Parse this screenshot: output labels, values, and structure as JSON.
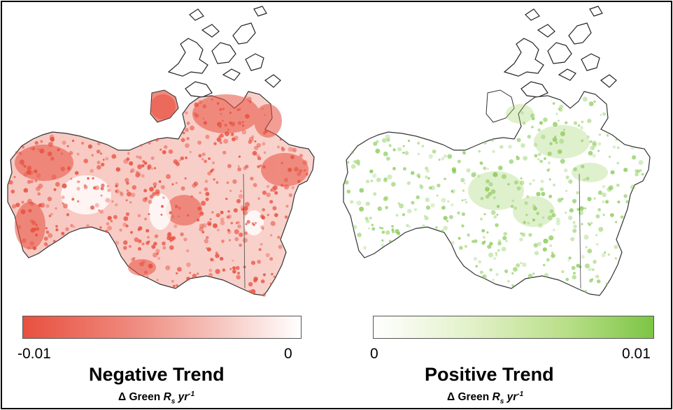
{
  "panels": {
    "negative": {
      "fill_color": "#e8503f",
      "colorbar": {
        "min_label": "-0.01",
        "max_label": "0"
      },
      "title": "Negative Trend",
      "unit": {
        "prefix": "Δ Green ",
        "symbol": "R",
        "subscript": "s",
        "mid": " yr",
        "superscript": "-1"
      }
    },
    "positive": {
      "fill_color": "#7cc545",
      "colorbar": {
        "min_label": "0",
        "max_label": "0.01"
      },
      "title": "Positive Trend",
      "unit": {
        "prefix": "Δ Green ",
        "symbol": "R",
        "subscript": "s",
        "mid": " yr",
        "superscript": "-1"
      }
    }
  }
}
